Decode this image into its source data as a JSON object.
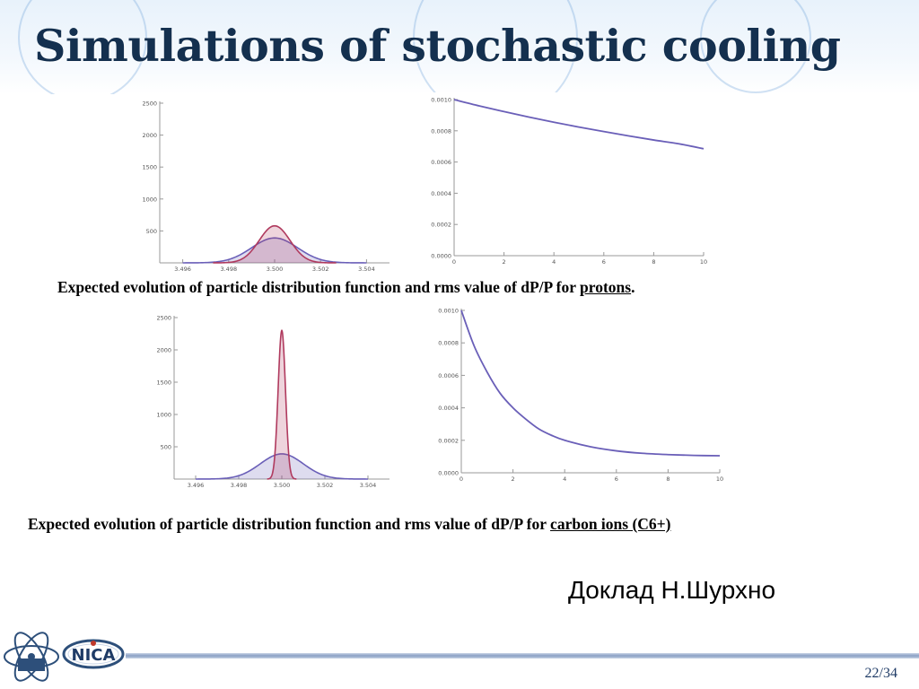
{
  "title": "Simulations of stochastic cooling",
  "captions": {
    "protons": {
      "text": "Expected evolution of particle distribution function and rms value of dP/P for ",
      "link": "protons",
      "end": "."
    },
    "carbon": {
      "text": "Expected evolution of particle distribution function and rms value of dP/P for ",
      "link": "carbon ions (C6+)",
      "end": ""
    }
  },
  "speaker": "Доклад Н.Шурхно",
  "page_number": "22/34",
  "logo_text": "NICA",
  "colors": {
    "title": "#14304f",
    "blue": "#6a5fb8",
    "red": "#b03a5e",
    "axis": "#888888"
  },
  "chart_data": [
    {
      "type": "area",
      "xlim": [
        3.495,
        3.505
      ],
      "ylim": [
        0,
        2500
      ],
      "xticks": [
        "3.496",
        "3.498",
        "3.500",
        "3.502",
        "3.504"
      ],
      "yticks": [
        "500",
        "1000",
        "1500",
        "2000",
        "2500"
      ],
      "series": [
        {
          "color": "#6a5fb8",
          "center": 3.5,
          "peak": 390,
          "sigma": 0.001
        },
        {
          "color": "#b03a5e",
          "center": 3.5,
          "peak": 580,
          "sigma": 0.00067
        }
      ]
    },
    {
      "type": "line",
      "xlim": [
        0,
        10
      ],
      "ylim": [
        0,
        0.001
      ],
      "xticks": [
        "0",
        "2",
        "4",
        "6",
        "8",
        "10"
      ],
      "yticks": [
        "0.0000",
        "0.0002",
        "0.0004",
        "0.0006",
        "0.0008",
        "0.0010"
      ],
      "series": [
        {
          "color": "#6a5fb8",
          "x": [
            0,
            1,
            2,
            3,
            4,
            5,
            6,
            7,
            8,
            9,
            10
          ],
          "y": [
            0.001,
            0.00096,
            0.000923,
            0.000888,
            0.000855,
            0.000824,
            0.000795,
            0.000767,
            0.000741,
            0.000717,
            0.000685
          ]
        }
      ]
    },
    {
      "type": "area",
      "xlim": [
        3.495,
        3.505
      ],
      "ylim": [
        0,
        2500
      ],
      "xticks": [
        "3.496",
        "3.498",
        "3.500",
        "3.502",
        "3.504"
      ],
      "yticks": [
        "500",
        "1000",
        "1500",
        "2000",
        "2500"
      ],
      "series": [
        {
          "color": "#6a5fb8",
          "center": 3.5,
          "peak": 390,
          "sigma": 0.001
        },
        {
          "color": "#b03a5e",
          "center": 3.5,
          "peak": 2300,
          "sigma": 0.00017
        }
      ]
    },
    {
      "type": "line",
      "xlim": [
        0,
        10
      ],
      "ylim": [
        0,
        0.001
      ],
      "xticks": [
        "0",
        "2",
        "4",
        "6",
        "8",
        "10"
      ],
      "yticks": [
        "0.0000",
        "0.0002",
        "0.0004",
        "0.0006",
        "0.0008",
        "0.0010"
      ],
      "series": [
        {
          "color": "#6a5fb8",
          "x": [
            0,
            0.5,
            1,
            1.5,
            2,
            2.5,
            3,
            3.5,
            4,
            5,
            6,
            7,
            8,
            9,
            10
          ],
          "y": [
            0.001,
            0.00078,
            0.00062,
            0.00049,
            0.0004,
            0.00033,
            0.00027,
            0.00023,
            0.0002,
            0.00016,
            0.000135,
            0.00012,
            0.000112,
            0.000107,
            0.000105
          ]
        }
      ]
    }
  ]
}
